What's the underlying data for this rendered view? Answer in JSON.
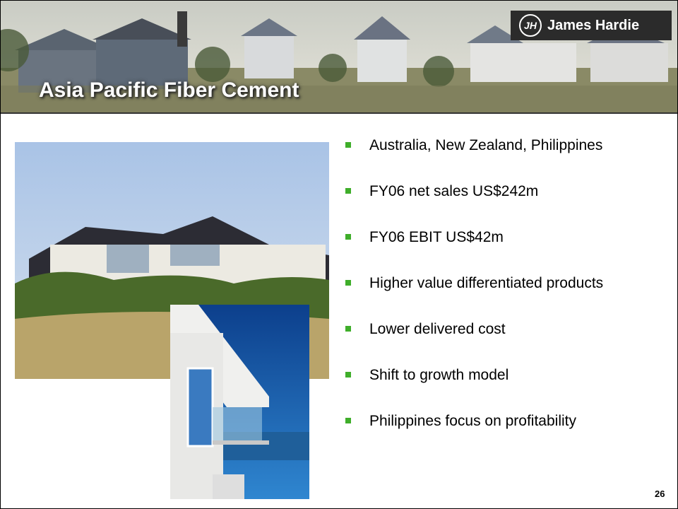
{
  "header": {
    "title": "Asia Pacific Fiber Cement",
    "logo_mark": "JH",
    "logo_text": "James Hardie"
  },
  "bullets": [
    "Australia, New Zealand, Philippines",
    "FY06 net sales US$242m",
    "FY06 EBIT US$42m",
    "Higher value differentiated products",
    "Lower delivered cost",
    "Shift to growth model",
    "Philippines focus on profitability"
  ],
  "page_number": "26"
}
